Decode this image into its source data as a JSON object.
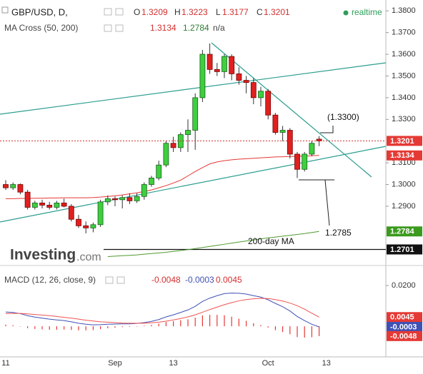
{
  "header": {
    "symbol": "GBP/USD, D,",
    "o_label": "O",
    "h_label": "H",
    "l_label": "L",
    "c_label": "C",
    "status": "realtime",
    "indicator": "MA Cross (50, 200)",
    "na": "n/a",
    "macd_title": "MACD (12, 26, close, 9)",
    "logo_main": "Investing",
    "logo_tld": ".com"
  },
  "chart_data": [
    {
      "type": "candlestick",
      "categories": [
        "11",
        null,
        null,
        null,
        null,
        null,
        null,
        null,
        null,
        null,
        null,
        null,
        null,
        null,
        null,
        "Sep",
        null,
        null,
        null,
        null,
        null,
        null,
        null,
        "13",
        null,
        null,
        null,
        null,
        null,
        null,
        null,
        null,
        null,
        null,
        null,
        null,
        "Oct",
        null,
        null,
        null,
        null,
        null,
        null,
        null,
        "13"
      ],
      "open": [
        1.3,
        1.2985,
        1.3,
        1.2965,
        1.2895,
        1.2915,
        1.2905,
        1.2895,
        1.2915,
        1.29,
        1.284,
        1.281,
        1.28,
        1.2815,
        1.292,
        1.2935,
        1.293,
        1.294,
        1.2925,
        1.2945,
        1.3,
        1.303,
        1.309,
        1.319,
        1.317,
        1.323,
        1.325,
        1.34,
        1.36,
        1.353,
        1.352,
        1.359,
        1.351,
        1.348,
        1.347,
        1.34,
        1.343,
        1.332,
        1.324,
        1.325,
        1.314,
        1.307,
        1.314,
        1.3209,
        null
      ],
      "high": [
        1.302,
        1.301,
        1.3005,
        1.2975,
        1.2925,
        1.293,
        1.292,
        1.2925,
        1.2935,
        1.291,
        1.286,
        1.283,
        1.2825,
        1.293,
        1.295,
        1.2945,
        1.295,
        1.296,
        1.296,
        1.301,
        1.304,
        1.311,
        1.32,
        1.322,
        1.324,
        1.33,
        1.342,
        1.362,
        1.365,
        1.356,
        1.36,
        1.36,
        1.354,
        1.35,
        1.349,
        1.345,
        1.344,
        1.333,
        1.327,
        1.326,
        1.315,
        1.315,
        1.32,
        1.3223,
        null
      ],
      "low": [
        1.2975,
        1.2975,
        1.2955,
        1.2885,
        1.2885,
        1.289,
        1.2885,
        1.2885,
        1.2895,
        1.283,
        1.28,
        1.2775,
        1.278,
        1.2805,
        1.2905,
        1.29,
        1.289,
        1.291,
        1.2915,
        1.293,
        1.299,
        1.302,
        1.308,
        1.315,
        1.315,
        1.315,
        1.316,
        1.338,
        1.351,
        1.35,
        1.349,
        1.348,
        1.346,
        1.342,
        1.337,
        1.336,
        1.33,
        1.323,
        1.32,
        1.312,
        1.303,
        1.306,
        1.313,
        1.3177,
        null
      ],
      "close": [
        1.2985,
        1.3,
        1.2965,
        1.2895,
        1.2915,
        1.2905,
        1.2895,
        1.2915,
        1.29,
        1.284,
        1.281,
        1.28,
        1.2815,
        1.292,
        1.2935,
        1.293,
        1.294,
        1.2925,
        1.2945,
        1.3,
        1.303,
        1.309,
        1.319,
        1.317,
        1.323,
        1.325,
        1.34,
        1.36,
        1.353,
        1.352,
        1.359,
        1.351,
        1.348,
        1.347,
        1.34,
        1.343,
        1.332,
        1.324,
        1.325,
        1.314,
        1.307,
        1.314,
        1.319,
        1.3201,
        null
      ],
      "up_color": "#3ecf3e",
      "down_color": "#e02020",
      "series": [
        {
          "color": "#e53935",
          "values": [
            1.2935,
            1.2935,
            1.2936,
            1.2936,
            1.2937,
            1.2937,
            1.2938,
            1.2938,
            1.2939,
            1.2939,
            1.2939,
            1.2939,
            1.294,
            1.2942,
            1.2945,
            1.2948,
            1.2952,
            1.2957,
            1.2962,
            1.2968,
            1.2975,
            1.2985,
            1.2995,
            1.3007,
            1.302,
            1.304,
            1.306,
            1.3078,
            1.3095,
            1.3104,
            1.311,
            1.3114,
            1.3117,
            1.3119,
            1.3121,
            1.3123,
            1.3125,
            1.3127,
            1.3128,
            1.3129,
            1.313,
            1.3131,
            1.3133,
            1.3134,
            null
          ]
        },
        {
          "color": "#4f9a2f",
          "values": [
            null,
            null,
            null,
            null,
            null,
            null,
            null,
            null,
            null,
            null,
            null,
            null,
            null,
            null,
            1.2668,
            1.267,
            1.2672,
            1.2674,
            1.2676,
            1.2679,
            1.2682,
            1.2685,
            1.2688,
            1.2692,
            1.2696,
            1.27,
            1.2705,
            1.271,
            1.2715,
            1.272,
            1.2725,
            1.273,
            1.2735,
            1.274,
            1.2745,
            1.275,
            1.2754,
            1.2758,
            1.2762,
            1.2766,
            1.277,
            1.2774,
            1.2779,
            1.2784,
            null
          ]
        }
      ],
      "support_level": 1.2701,
      "annotations": [
        "(1.3300)",
        "1.2785",
        "200-day MA"
      ],
      "ylim": [
        1.265,
        1.385
      ],
      "yticks": [
        {
          "value": 1.38,
          "label": "1.3800"
        },
        {
          "value": 1.37,
          "label": "1.3700"
        },
        {
          "value": 1.36,
          "label": "1.3600"
        },
        {
          "value": 1.35,
          "label": "1.3500"
        },
        {
          "value": 1.34,
          "label": "1.3400"
        },
        {
          "value": 1.33,
          "label": "1.3300"
        },
        {
          "value": 1.31,
          "label": "1.3100"
        },
        {
          "value": 1.3,
          "label": "1.3000"
        },
        {
          "value": 1.29,
          "label": "1.2900"
        }
      ]
    },
    {
      "type": "macd",
      "series": [
        {
          "color": "#3f51b5",
          "values": [
            0.007,
            0.0068,
            0.0062,
            0.0052,
            0.0045,
            0.004,
            0.0035,
            0.0031,
            0.0028,
            0.0022,
            0.0015,
            0.001,
            0.0007,
            0.0008,
            0.001,
            0.0011,
            0.0012,
            0.0012,
            0.0014,
            0.0018,
            0.0024,
            0.0033,
            0.0046,
            0.0056,
            0.0068,
            0.008,
            0.0098,
            0.0122,
            0.0138,
            0.015,
            0.016,
            0.0163,
            0.0162,
            0.0158,
            0.015,
            0.0143,
            0.013,
            0.0112,
            0.0096,
            0.0075,
            0.0048,
            0.0028,
            0.001,
            -0.0003,
            null
          ]
        },
        {
          "color": "#ef5350",
          "values": [
            0.0062,
            0.0063,
            0.0063,
            0.0061,
            0.0058,
            0.0055,
            0.0052,
            0.0048,
            0.0044,
            0.004,
            0.0035,
            0.003,
            0.0026,
            0.0022,
            0.002,
            0.0018,
            0.0016,
            0.0015,
            0.0015,
            0.0015,
            0.0017,
            0.002,
            0.0025,
            0.0031,
            0.0038,
            0.0046,
            0.0056,
            0.0069,
            0.0082,
            0.0094,
            0.0106,
            0.0116,
            0.0125,
            0.0131,
            0.0135,
            0.0137,
            0.0136,
            0.0131,
            0.0124,
            0.0114,
            0.0101,
            0.0084,
            0.0064,
            0.0045,
            null
          ]
        }
      ],
      "histogram": {
        "color": "#e53935",
        "values": [
          0.0008,
          0.0005,
          -0.0001,
          -0.0009,
          -0.0013,
          -0.0015,
          -0.0017,
          -0.0017,
          -0.0016,
          -0.0018,
          -0.002,
          -0.002,
          -0.0019,
          -0.0014,
          -0.001,
          -0.0007,
          -0.0004,
          -0.0003,
          -0.0001,
          0.0003,
          0.0007,
          0.0013,
          0.0021,
          0.0025,
          0.003,
          0.0034,
          0.0042,
          0.0053,
          0.0056,
          0.0056,
          0.0054,
          0.0047,
          0.0037,
          0.0027,
          0.0015,
          0.0006,
          -0.0006,
          -0.0019,
          -0.0028,
          -0.0039,
          -0.0053,
          -0.0056,
          -0.0054,
          -0.0048,
          null
        ]
      },
      "ylim": [
        -0.015,
        0.027
      ],
      "yticks": [
        {
          "value": 0.02,
          "label": "0.0200"
        }
      ]
    }
  ]
}
